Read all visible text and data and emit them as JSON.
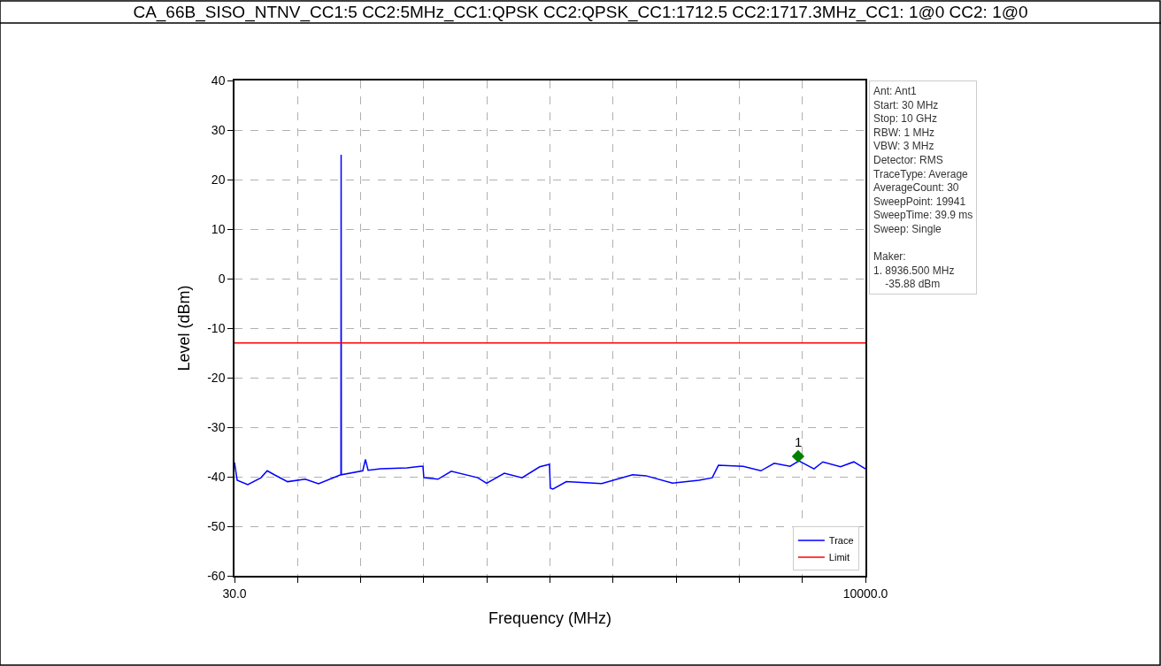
{
  "chart_data": {
    "type": "line",
    "title": "CA_66B_SISO_NTNV_CC1:5 CC2:5MHz_CC1:QPSK CC2:QPSK_CC1:1712.5 CC2:1717.3MHz_CC1: 1@0 CC2: 1@0",
    "xlabel": "Frequency (MHz)",
    "ylabel": "Level (dBm)",
    "xlim": [
      30,
      10000
    ],
    "xticks": [
      {
        "value": 30,
        "label": "30.0"
      },
      {
        "value": 1027,
        "label": null
      },
      {
        "value": 2024,
        "label": null
      },
      {
        "value": 3021,
        "label": null
      },
      {
        "value": 4018,
        "label": null
      },
      {
        "value": 5015,
        "label": null
      },
      {
        "value": 6012,
        "label": null
      },
      {
        "value": 7009,
        "label": null
      },
      {
        "value": 8006,
        "label": null
      },
      {
        "value": 9003,
        "label": null
      },
      {
        "value": 10000,
        "label": "10000.0"
      }
    ],
    "ylim": [
      -60,
      40
    ],
    "yticks": [
      -60,
      -50,
      -40,
      -30,
      -20,
      -10,
      0,
      10,
      20,
      30,
      40
    ],
    "grid": true,
    "legend": "bottom right",
    "marker": "none",
    "line_style": "solid",
    "series": [
      {
        "name": "Trace",
        "color": "#0000ff",
        "x": [
          30,
          72,
          240,
          449,
          547,
          659,
          869,
          1148,
          1358,
          1708,
          1712,
          1715,
          1718,
          2057,
          2099,
          2141,
          2337,
          2756,
          2966,
          3008,
          3022,
          3245,
          3455,
          3874,
          4014,
          4294,
          4574,
          4853,
          5007,
          5021,
          5063,
          5273,
          5832,
          6321,
          6531,
          6950,
          7370,
          7579,
          7677,
          8068,
          8348,
          8558,
          8809,
          8949,
          9187,
          9327,
          9606,
          9816,
          10000
        ],
        "values": [
          -37.1,
          -40.7,
          -41.6,
          -40.2,
          -38.8,
          -39.6,
          -41,
          -40.5,
          -41.4,
          -39.6,
          -39.6,
          25,
          -39.6,
          -38.8,
          -36.5,
          -38.7,
          -38.4,
          -38.2,
          -37.9,
          -37.9,
          -40.2,
          -40.5,
          -38.9,
          -40.2,
          -41.3,
          -39.3,
          -40.2,
          -38,
          -37.5,
          -42.3,
          -42.5,
          -41,
          -41.4,
          -39.6,
          -39.8,
          -41.3,
          -40.7,
          -40.2,
          -37.7,
          -37.9,
          -38.8,
          -37.3,
          -37.9,
          -36.8,
          -38.4,
          -37,
          -38,
          -37,
          -38.4
        ]
      },
      {
        "type": "scatter",
        "marker": "diamond",
        "color": "#008000",
        "x": [
          8936.5
        ],
        "values": [
          -35.88
        ]
      }
    ],
    "ref_lines": [
      {
        "axis": "y",
        "value": -13,
        "label": "Limit",
        "color": "#ff0000",
        "line_style": "solid"
      }
    ],
    "annotations": [
      "Ant: Ant1\nStart: 30 MHz\nStop: 10 GHz\nRBW: 1 MHz\nVBW: 3 MHz\nDetector: RMS\nTraceType: Average\nAverageCount: 30\nSweepPoint: 19941\nSweepTime: 39.9 ms\nSweep: Single\n\nMaker:\n1. 8936.500 MHz\n    -35.88 dBm",
      {
        "text": "1",
        "x": 8936.5,
        "y": -35.88
      }
    ]
  }
}
